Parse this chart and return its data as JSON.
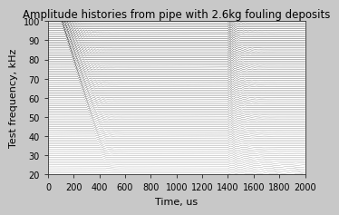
{
  "title": "Amplitude histories from pipe with 2.6kg fouling deposits",
  "xlabel": "Time, us",
  "ylabel": "Test frequency, kHz",
  "xlim": [
    0,
    2000
  ],
  "ylim": [
    20,
    100
  ],
  "yticks": [
    20,
    30,
    40,
    50,
    60,
    70,
    80,
    90,
    100
  ],
  "xticks": [
    0,
    200,
    400,
    600,
    800,
    1000,
    1200,
    1400,
    1600,
    1800,
    2000
  ],
  "freq_min": 20,
  "freq_max": 100,
  "freq_step": 1,
  "t_max": 2000,
  "n_time": 4000,
  "fig_bg": "#c8c8c8",
  "ax_bg": "#ffffff",
  "line_color": "#111111",
  "title_fontsize": 8.5,
  "label_fontsize": 8,
  "tick_fontsize": 7
}
